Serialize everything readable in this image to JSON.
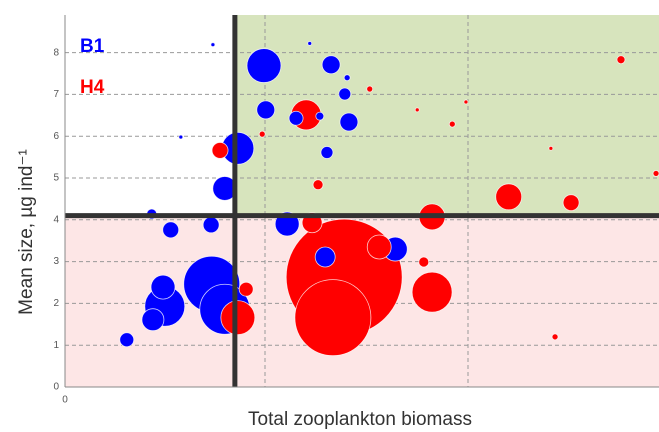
{
  "chart_data": {
    "type": "bubble",
    "xlabel": "Total zooplankton biomass",
    "ylabel": "Mean size, µg ind⁻¹",
    "xlim": [
      0,
      100
    ],
    "ylim": [
      0,
      8.9
    ],
    "xticks": [
      0
    ],
    "yticks": [
      0,
      1,
      2,
      3,
      4,
      5,
      6,
      7,
      8
    ],
    "grid": true,
    "reference_lines": {
      "x": 28.6,
      "y": 4.1
    },
    "series": [
      {
        "name": "B1",
        "color": "#0000ff",
        "x": [
          24.9,
          33.5,
          41.2,
          44.8,
          47.5,
          47.1,
          33.8,
          38.9,
          42.9,
          47.8,
          19.5,
          44.1,
          29.1,
          26.9,
          14.6,
          24.6,
          17.8,
          37.4,
          55.6,
          43.8,
          16.5,
          16.8,
          14.8,
          24.7,
          26.9,
          10.4
        ],
        "values": [
          8.19,
          7.69,
          8.22,
          7.71,
          7.4,
          7.01,
          6.63,
          6.43,
          6.48,
          6.34,
          5.98,
          5.61,
          5.71,
          4.75,
          4.14,
          3.88,
          3.76,
          3.9,
          3.3,
          3.11,
          2.39,
          1.93,
          1.61,
          2.46,
          1.86,
          1.13
        ],
        "sizes": [
          2,
          17,
          2,
          9,
          3,
          6,
          9,
          7,
          4,
          9,
          2,
          6,
          16,
          12,
          5,
          8,
          8,
          12,
          12,
          10,
          12,
          20,
          11,
          28,
          25,
          7
        ]
      },
      {
        "name": "H4",
        "color": "#ff0000",
        "x": [
          93.6,
          51.3,
          40.6,
          59.3,
          67.5,
          65.2,
          33.2,
          26.1,
          81.8,
          42.6,
          99.5,
          74.7,
          85.2,
          61.8,
          41.6,
          47,
          45.1,
          52.9,
          61.8,
          60.4,
          30.5,
          29.1,
          82.5
        ],
        "values": [
          7.83,
          7.13,
          6.51,
          6.63,
          6.82,
          6.29,
          6.05,
          5.66,
          5.71,
          4.84,
          5.11,
          4.55,
          4.41,
          4.07,
          3.93,
          2.63,
          1.66,
          3.35,
          2.27,
          2.99,
          2.34,
          1.66,
          1.2
        ],
        "sizes": [
          4,
          3,
          15,
          2,
          2,
          3,
          3,
          8,
          2,
          5,
          3,
          13,
          8,
          13,
          10,
          58,
          38,
          12,
          20,
          5,
          7,
          17,
          3
        ]
      }
    ]
  }
}
